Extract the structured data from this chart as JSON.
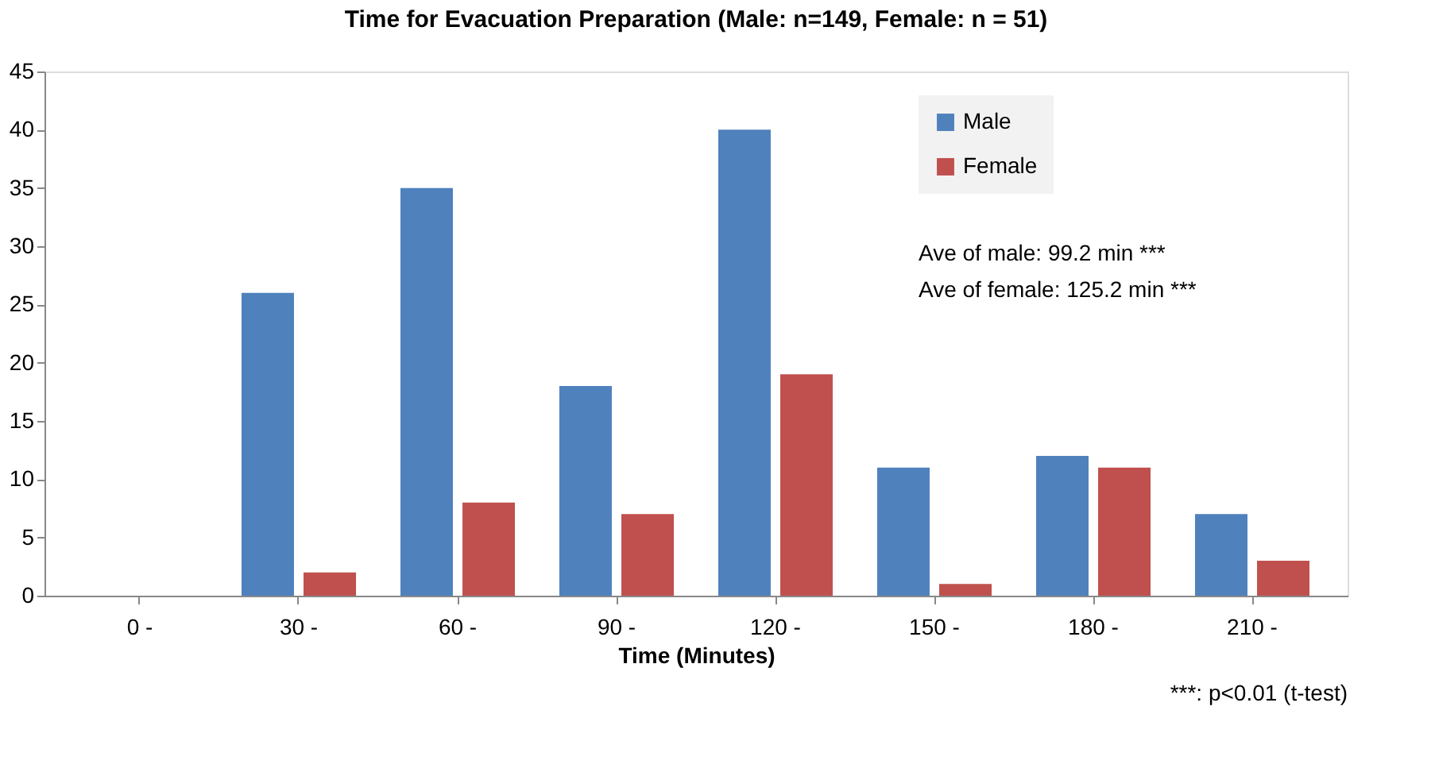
{
  "chart_data": {
    "type": "bar",
    "title": "Time for Evacuation Preparation (Male: n=149, Female: n = 51)",
    "xlabel": "Time (Minutes)",
    "categories": [
      "0 -",
      "30 -",
      "60 -",
      "90 -",
      "120 -",
      "150 -",
      "180 -",
      "210 -"
    ],
    "series": [
      {
        "name": "Male",
        "color": "#4f81bd",
        "values": [
          0,
          26,
          35,
          18,
          40,
          11,
          12,
          7
        ]
      },
      {
        "name": "Female",
        "color": "#c0504d",
        "values": [
          0,
          2,
          8,
          7,
          19,
          1,
          11,
          3
        ]
      }
    ],
    "ylim": [
      0,
      45
    ],
    "yticks": [
      0,
      5,
      10,
      15,
      20,
      25,
      30,
      35,
      40,
      45
    ],
    "grid": false,
    "legend": "top right",
    "annotations": [
      "Ave of male: 99.2 min ***",
      "Ave of female: 125.2 min ***",
      "***: p<0.01 (t-test)"
    ]
  }
}
